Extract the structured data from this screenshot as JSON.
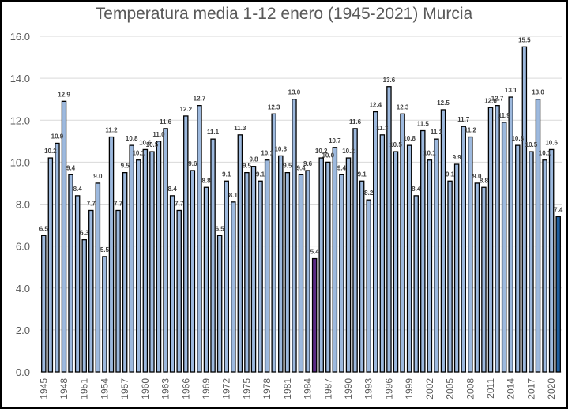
{
  "chart_data": {
    "type": "bar",
    "title": "Temperatura media 1-12 enero (1945-2021) Murcia",
    "xlabel": "",
    "ylabel": "",
    "ylim": [
      0,
      16
    ],
    "yticks": [
      "0.0",
      "2.0",
      "4.0",
      "6.0",
      "8.0",
      "10.0",
      "12.0",
      "14.0",
      "16.0"
    ],
    "ytick_values": [
      0,
      2,
      4,
      6,
      8,
      10,
      12,
      14,
      16
    ],
    "grid": true,
    "legend": "none",
    "categories": [
      1945,
      1946,
      1947,
      1948,
      1949,
      1950,
      1951,
      1952,
      1953,
      1954,
      1955,
      1956,
      1957,
      1958,
      1959,
      1960,
      1961,
      1962,
      1963,
      1964,
      1965,
      1966,
      1967,
      1968,
      1969,
      1970,
      1971,
      1972,
      1973,
      1974,
      1975,
      1976,
      1977,
      1978,
      1979,
      1980,
      1981,
      1982,
      1983,
      1984,
      1985,
      1986,
      1987,
      1988,
      1989,
      1990,
      1991,
      1992,
      1993,
      1994,
      1995,
      1996,
      1997,
      1998,
      1999,
      2000,
      2001,
      2002,
      2003,
      2004,
      2005,
      2006,
      2007,
      2008,
      2009,
      2010,
      2011,
      2012,
      2013,
      2014,
      2015,
      2016,
      2017,
      2018,
      2019,
      2020,
      2021
    ],
    "xtick_labels_shown": [
      "1945",
      "1948",
      "1951",
      "1954",
      "1957",
      "1960",
      "1963",
      "1966",
      "1969",
      "1972",
      "1975",
      "1978",
      "1981",
      "1984",
      "1987",
      "1990",
      "1993",
      "1996",
      "1999",
      "2002",
      "2005",
      "2008",
      "2011",
      "2014",
      "2017",
      "2020"
    ],
    "values": [
      6.5,
      10.2,
      10.9,
      12.9,
      9.4,
      8.4,
      6.3,
      7.7,
      9.0,
      5.5,
      11.2,
      7.7,
      9.5,
      10.8,
      10.1,
      10.6,
      10.5,
      11.0,
      11.6,
      8.4,
      7.7,
      12.2,
      9.6,
      12.7,
      8.8,
      11.1,
      6.5,
      9.1,
      8.1,
      11.3,
      9.5,
      9.8,
      9.1,
      10.1,
      12.3,
      10.3,
      9.5,
      13.0,
      9.4,
      9.6,
      5.4,
      10.2,
      10.0,
      10.7,
      9.4,
      10.2,
      11.6,
      9.1,
      8.2,
      12.4,
      11.3,
      13.6,
      10.5,
      12.3,
      10.8,
      8.4,
      11.5,
      10.1,
      11.1,
      12.5,
      9.1,
      9.9,
      11.7,
      11.2,
      9.0,
      8.8,
      12.6,
      12.7,
      11.9,
      13.1,
      10.8,
      15.5,
      10.5,
      13.0,
      10.1,
      10.6,
      7.4
    ],
    "colors": {
      "default_bar": "#9db9de",
      "highlight_min": "#5b2a86",
      "highlight_last": "#1f5fa0",
      "bar_border": "#000000",
      "gridline": "#d9d9d9",
      "text": "#595959"
    },
    "highlights": {
      "1985": "highlight_min",
      "2021": "highlight_last"
    }
  }
}
